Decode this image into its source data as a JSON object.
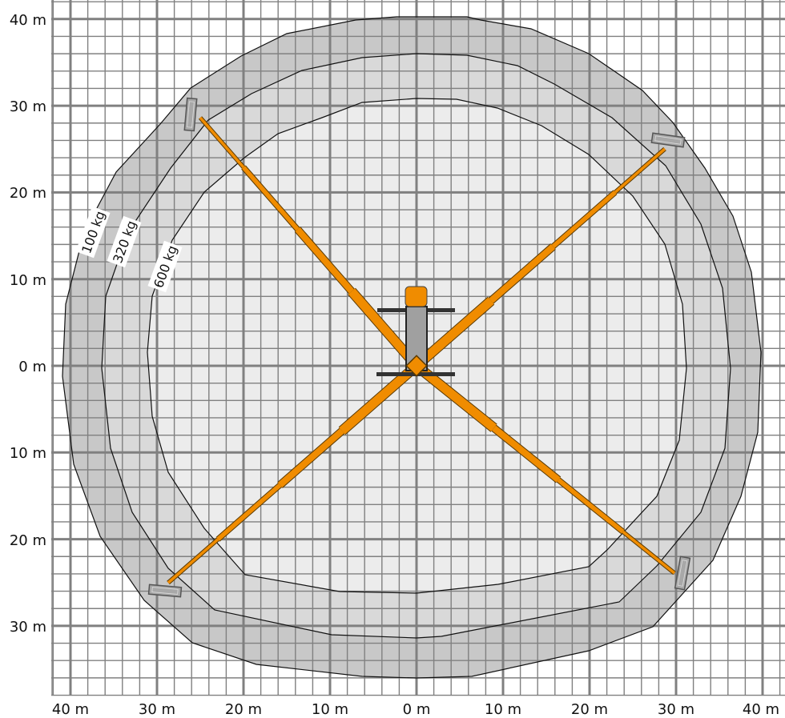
{
  "diagram": {
    "y_axis_labels": [
      "40 m",
      "30 m",
      "20 m",
      "10 m",
      "0 m",
      "10 m",
      "20 m",
      "30 m"
    ],
    "x_axis_labels": [
      "40 m",
      "30 m",
      "20 m",
      "10 m",
      "0 m",
      "10 m",
      "20 m",
      "30 m",
      "40 m"
    ],
    "load_zones": [
      {
        "label": "100 kg",
        "color": "#c8c8c8"
      },
      {
        "label": "320 kg",
        "color": "#d9d9d9"
      },
      {
        "label": "600 kg",
        "color": "#ececec"
      }
    ],
    "grid": {
      "minor_step_m": 2,
      "major_step_m": 10
    },
    "colors": {
      "boom": "#f08c00",
      "machine_body": "#a0a0a0",
      "cab": "#f08c00",
      "grid": "#808080"
    }
  }
}
